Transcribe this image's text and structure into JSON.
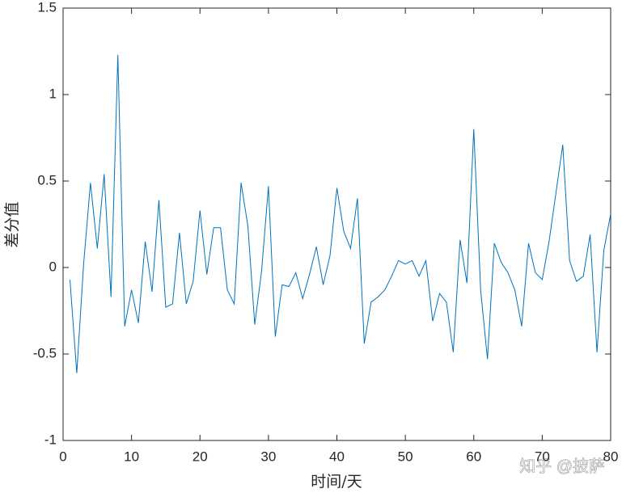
{
  "chart_data": {
    "type": "line",
    "x_label": "时间/天",
    "y_label": "差分值",
    "x": [
      1,
      2,
      3,
      4,
      5,
      6,
      7,
      8,
      9,
      10,
      11,
      12,
      13,
      14,
      15,
      16,
      17,
      18,
      19,
      20,
      21,
      22,
      23,
      24,
      25,
      26,
      27,
      28,
      29,
      30,
      31,
      32,
      33,
      34,
      35,
      36,
      37,
      38,
      39,
      40,
      41,
      42,
      43,
      44,
      45,
      46,
      47,
      48,
      49,
      50,
      51,
      52,
      53,
      54,
      55,
      56,
      57,
      58,
      59,
      60,
      61,
      62,
      63,
      64,
      65,
      66,
      67,
      68,
      69,
      70,
      71,
      72,
      73,
      74,
      75,
      76,
      77,
      78,
      79,
      80
    ],
    "series": [
      {
        "name": "差分值",
        "color": "#0072bd",
        "values": [
          -0.07,
          -0.61,
          0.02,
          0.49,
          0.11,
          0.54,
          -0.17,
          1.23,
          -0.34,
          -0.13,
          -0.32,
          0.15,
          -0.14,
          0.39,
          -0.23,
          -0.21,
          0.2,
          -0.21,
          -0.08,
          0.33,
          -0.04,
          0.23,
          0.23,
          -0.13,
          -0.21,
          0.49,
          0.24,
          -0.33,
          -0.02,
          0.47,
          -0.4,
          -0.1,
          -0.11,
          -0.03,
          -0.18,
          -0.04,
          0.12,
          -0.1,
          0.07,
          0.46,
          0.21,
          0.11,
          0.4,
          -0.44,
          -0.2,
          -0.17,
          -0.13,
          -0.05,
          0.04,
          0.02,
          0.04,
          -0.05,
          0.04,
          -0.31,
          -0.15,
          -0.2,
          -0.49,
          0.16,
          -0.09,
          0.8,
          -0.13,
          -0.53,
          0.14,
          0.03,
          -0.03,
          -0.13,
          -0.34,
          0.14,
          -0.03,
          -0.07,
          0.15,
          0.43,
          0.71,
          0.04,
          -0.08,
          -0.05,
          0.19,
          -0.49,
          0.1,
          0.31
        ]
      }
    ],
    "xlim": [
      0,
      80
    ],
    "xticks": [
      0,
      10,
      20,
      30,
      40,
      50,
      60,
      70,
      80
    ],
    "ylim": [
      -1,
      1.5
    ],
    "yticks": [
      -1,
      -0.5,
      0,
      0.5,
      1,
      1.5
    ],
    "box": true,
    "watermark": "知乎 @披萨"
  }
}
